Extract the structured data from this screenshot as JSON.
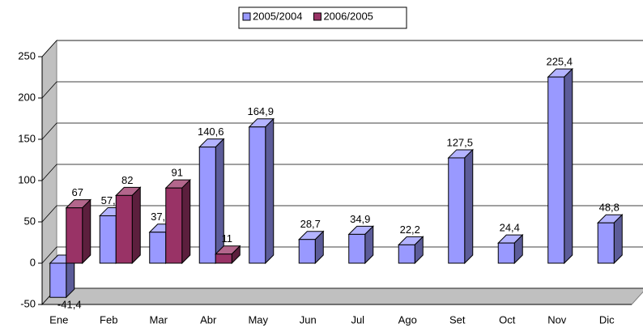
{
  "chart_data": {
    "type": "bar3d",
    "categories": [
      "Ene",
      "Feb",
      "Mar",
      "Abr",
      "May",
      "Jun",
      "Jul",
      "Ago",
      "Set",
      "Oct",
      "Nov",
      "Dic"
    ],
    "series": [
      {
        "name": "2005/2004",
        "color": "#9999ff",
        "values": [
          -41.4,
          57.4,
          37.5,
          140.6,
          164.9,
          28.7,
          34.9,
          22.2,
          127.5,
          24.4,
          225.4,
          48.8
        ],
        "value_labels": [
          "-41,4",
          "57,4",
          "37,5",
          "140,6",
          "164,9",
          "28,7",
          "34,9",
          "22,2",
          "127,5",
          "24,4",
          "225,4",
          "48,8"
        ]
      },
      {
        "name": "2006/2005",
        "color": "#993366",
        "values": [
          67,
          82,
          91,
          11,
          null,
          null,
          null,
          null,
          null,
          null,
          null,
          null
        ]
      }
    ],
    "ylim": [
      -50,
      250
    ],
    "yticks": [
      -50,
      0,
      50,
      100,
      150,
      200,
      250
    ],
    "grid": true,
    "legend": "top"
  }
}
